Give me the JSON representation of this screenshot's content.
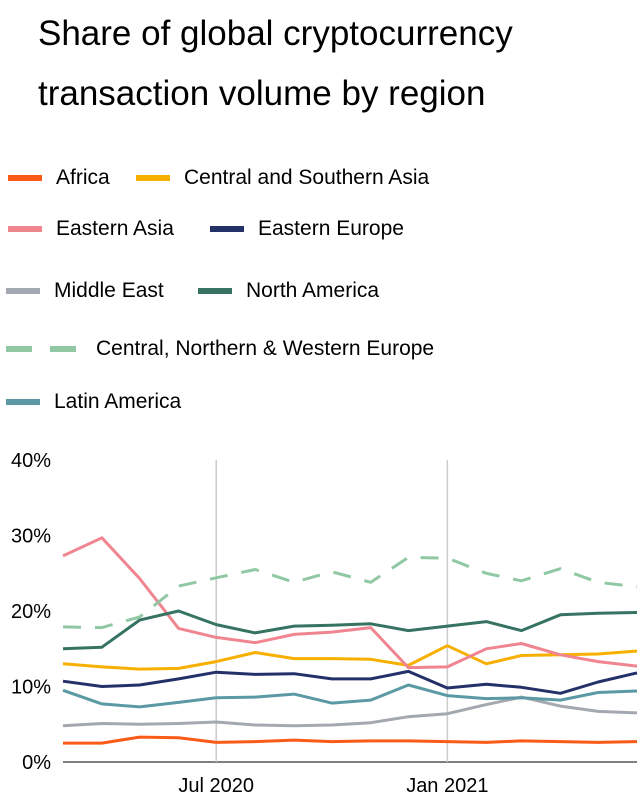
{
  "chart_data": {
    "type": "line",
    "title": "Share of global cryptocurrency transaction volume by region",
    "xlabel": "",
    "ylabel": "",
    "ylim": [
      0,
      40
    ],
    "y_ticks": [
      "0%",
      "10%",
      "20%",
      "30%",
      "40%"
    ],
    "x_ticks": [
      "Jul 2020",
      "Jan 2021"
    ],
    "x": [
      "2020-03",
      "2020-04",
      "2020-05",
      "2020-06",
      "2020-07",
      "2020-08",
      "2020-09",
      "2020-10",
      "2020-11",
      "2020-12",
      "2021-01",
      "2021-02",
      "2021-03",
      "2021-04",
      "2021-05",
      "2021-06"
    ],
    "grid": "vertical at ticks",
    "legend_position": "top",
    "series": [
      {
        "name": "Africa",
        "color": "#fa5c18",
        "dash": false,
        "values": [
          2.5,
          2.5,
          3.3,
          3.2,
          2.6,
          2.7,
          2.9,
          2.7,
          2.8,
          2.8,
          2.7,
          2.6,
          2.8,
          2.7,
          2.6,
          2.7
        ]
      },
      {
        "name": "Central and Southern Asia",
        "color": "#f7b001",
        "dash": false,
        "values": [
          13.0,
          12.6,
          12.3,
          12.4,
          13.3,
          14.5,
          13.7,
          13.7,
          13.6,
          12.8,
          15.4,
          13.0,
          14.1,
          14.2,
          14.3,
          14.7
        ]
      },
      {
        "name": "Eastern Asia",
        "color": "#f08590",
        "dash": false,
        "values": [
          27.3,
          29.7,
          24.3,
          17.7,
          16.5,
          15.8,
          16.9,
          17.2,
          17.8,
          12.5,
          12.6,
          15.0,
          15.7,
          14.2,
          13.3,
          12.7
        ]
      },
      {
        "name": "Eastern Europe",
        "color": "#243169",
        "dash": false,
        "values": [
          10.7,
          10.0,
          10.2,
          11.0,
          11.9,
          11.6,
          11.7,
          11.0,
          11.0,
          12.0,
          9.8,
          10.3,
          9.9,
          9.1,
          10.6,
          11.8
        ]
      },
      {
        "name": "Middle East",
        "color": "#a4a8b0",
        "dash": false,
        "values": [
          4.8,
          5.1,
          5.0,
          5.1,
          5.3,
          4.9,
          4.8,
          4.9,
          5.2,
          6.0,
          6.4,
          7.6,
          8.6,
          7.4,
          6.7,
          6.5
        ]
      },
      {
        "name": "North America",
        "color": "#367363",
        "dash": false,
        "values": [
          15.0,
          15.2,
          18.8,
          20.0,
          18.2,
          17.1,
          18.0,
          18.1,
          18.3,
          17.4,
          18.0,
          18.6,
          17.4,
          19.5,
          19.7,
          19.8
        ]
      },
      {
        "name": "Central, Northern & Western Europe",
        "color": "#8fc8a3",
        "dash": true,
        "values": [
          17.9,
          17.8,
          19.2,
          23.3,
          24.4,
          25.5,
          23.8,
          25.2,
          23.8,
          27.1,
          27.0,
          25.0,
          24.0,
          25.6,
          23.8,
          23.2
        ]
      },
      {
        "name": "Latin America",
        "color": "#5b9aa5",
        "dash": false,
        "values": [
          9.5,
          7.7,
          7.3,
          7.9,
          8.5,
          8.6,
          9.0,
          7.8,
          8.2,
          10.2,
          8.8,
          8.4,
          8.5,
          8.2,
          9.2,
          9.4
        ]
      }
    ]
  }
}
